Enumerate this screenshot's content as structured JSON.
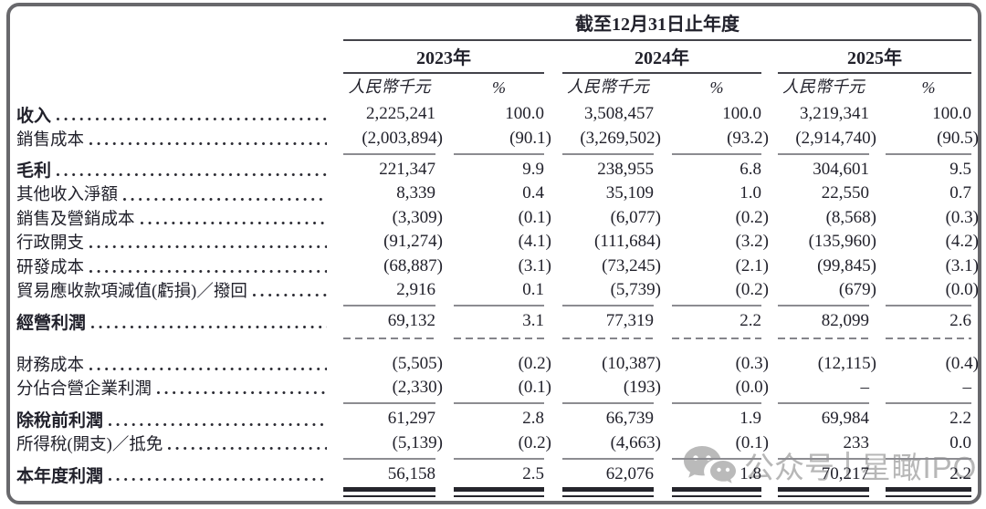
{
  "table": {
    "period_title": "截至12月31日止年度",
    "year_groups": [
      {
        "label": "2023年"
      },
      {
        "label": "2024年"
      },
      {
        "label": "2025年"
      }
    ],
    "unit_label": "人民幣千元",
    "percent_label": "%",
    "rows": [
      {
        "label": "收入",
        "bold": true,
        "rule_below": "none",
        "values": [
          "2,225,241",
          "100.0",
          "3,508,457",
          "100.0",
          "3,219,341",
          "100.0"
        ]
      },
      {
        "label": "銷售成本",
        "bold": false,
        "rule_below": "solid",
        "values": [
          "(2,003,894)",
          "(90.1)",
          "(3,269,502)",
          "(93.2)",
          "(2,914,740)",
          "(90.5)"
        ]
      },
      {
        "label": "毛利",
        "bold": true,
        "rule_below": "none",
        "values": [
          "221,347",
          "9.9",
          "238,955",
          "6.8",
          "304,601",
          "9.5"
        ]
      },
      {
        "label": "其他收入淨額",
        "bold": false,
        "rule_below": "none",
        "values": [
          "8,339",
          "0.4",
          "35,109",
          "1.0",
          "22,550",
          "0.7"
        ]
      },
      {
        "label": "銷售及營銷成本",
        "bold": false,
        "rule_below": "none",
        "values": [
          "(3,309)",
          "(0.1)",
          "(6,077)",
          "(0.2)",
          "(8,568)",
          "(0.3)"
        ]
      },
      {
        "label": "行政開支",
        "bold": false,
        "rule_below": "none",
        "values": [
          "(91,274)",
          "(4.1)",
          "(111,684)",
          "(3.2)",
          "(135,960)",
          "(4.2)"
        ]
      },
      {
        "label": "研發成本",
        "bold": false,
        "rule_below": "none",
        "values": [
          "(68,887)",
          "(3.1)",
          "(73,245)",
          "(2.1)",
          "(99,845)",
          "(3.1)"
        ]
      },
      {
        "label": "貿易應收款項減值(虧損)／撥回",
        "bold": false,
        "rule_below": "solid",
        "values": [
          "2,916",
          "0.1",
          "(5,739)",
          "(0.2)",
          "(679)",
          "(0.0)"
        ]
      },
      {
        "label": "經營利潤",
        "bold": true,
        "rule_below": "dashed",
        "values": [
          "69,132",
          "3.1",
          "77,319",
          "2.2",
          "82,099",
          "2.6"
        ]
      },
      {
        "label": "財務成本",
        "bold": false,
        "rule_below": "none",
        "values": [
          "(5,505)",
          "(0.2)",
          "(10,387)",
          "(0.3)",
          "(12,115)",
          "(0.4)"
        ]
      },
      {
        "label": "分佔合營企業利潤",
        "bold": false,
        "rule_below": "solid",
        "values": [
          "(2,330)",
          "(0.1)",
          "(193)",
          "(0.0)",
          "–",
          "–"
        ]
      },
      {
        "label": "除稅前利潤",
        "bold": true,
        "rule_below": "none",
        "values": [
          "61,297",
          "2.8",
          "66,739",
          "1.9",
          "69,984",
          "2.2"
        ]
      },
      {
        "label": "所得稅(開支)／抵免",
        "bold": false,
        "rule_below": "solid",
        "values": [
          "(5,139)",
          "(0.2)",
          "(4,663)",
          "(0.1)",
          "233",
          "0.0"
        ]
      },
      {
        "label": "本年度利潤",
        "bold": true,
        "rule_below": "double",
        "values": [
          "56,158",
          "2.5",
          "62,076",
          "1.8",
          "70,217",
          "2.2"
        ]
      }
    ]
  },
  "watermark": {
    "icon": "wechat-icon",
    "label": "公众号",
    "separator": "|",
    "name": "星瞰IPO",
    "color": "#b4b4b4"
  },
  "colors": {
    "ink": "#21212b",
    "rule_light": "#8c8c91",
    "rule_dark": "#43434a",
    "rule_heavy": "#25252c",
    "frame_border": "#68686c",
    "watermark": "#b4b4b4"
  }
}
